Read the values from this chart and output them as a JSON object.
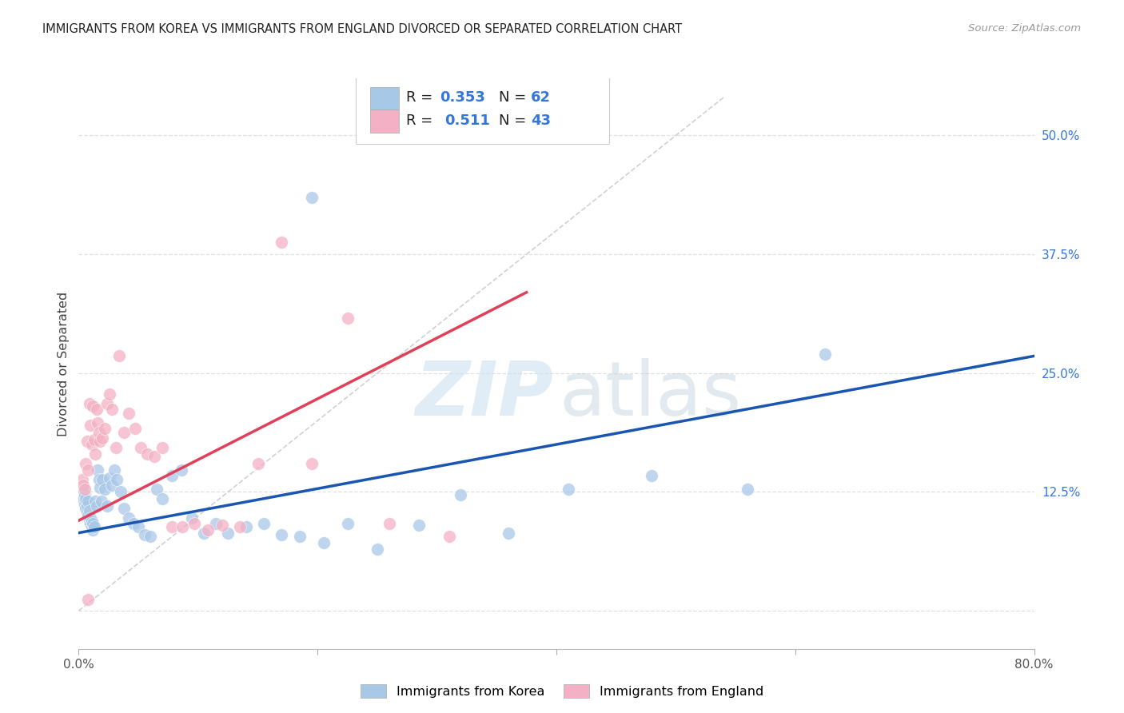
{
  "title": "IMMIGRANTS FROM KOREA VS IMMIGRANTS FROM ENGLAND DIVORCED OR SEPARATED CORRELATION CHART",
  "source": "Source: ZipAtlas.com",
  "ylabel": "Divorced or Separated",
  "x_min": 0.0,
  "x_max": 0.8,
  "y_min": -0.04,
  "y_max": 0.56,
  "x_ticks": [
    0.0,
    0.2,
    0.4,
    0.6,
    0.8
  ],
  "x_tick_labels": [
    "0.0%",
    "",
    "",
    "",
    "80.0%"
  ],
  "y_ticks": [
    0.0,
    0.125,
    0.25,
    0.375,
    0.5
  ],
  "y_tick_labels": [
    "",
    "12.5%",
    "25.0%",
    "37.5%",
    "50.0%"
  ],
  "korea_R": "0.353",
  "korea_N": "62",
  "england_R": "0.511",
  "england_N": "43",
  "korea_color": "#a8c8e8",
  "england_color": "#f4b0c4",
  "korea_line_color": "#1a56b0",
  "england_line_color": "#e0405a",
  "diagonal_color": "#cccccc",
  "background_color": "#ffffff",
  "grid_color": "#e0e0e0",
  "legend_text_color": "#3377dd",
  "korea_scatter_x": [
    0.003,
    0.004,
    0.005,
    0.005,
    0.006,
    0.006,
    0.007,
    0.007,
    0.008,
    0.008,
    0.009,
    0.009,
    0.01,
    0.01,
    0.011,
    0.011,
    0.012,
    0.012,
    0.013,
    0.014,
    0.015,
    0.016,
    0.017,
    0.018,
    0.019,
    0.02,
    0.022,
    0.024,
    0.026,
    0.028,
    0.03,
    0.032,
    0.035,
    0.038,
    0.042,
    0.046,
    0.05,
    0.055,
    0.06,
    0.065,
    0.07,
    0.078,
    0.086,
    0.095,
    0.105,
    0.115,
    0.125,
    0.14,
    0.155,
    0.17,
    0.185,
    0.205,
    0.225,
    0.25,
    0.285,
    0.32,
    0.36,
    0.41,
    0.48,
    0.56,
    0.195,
    0.625
  ],
  "korea_scatter_y": [
    0.128,
    0.118,
    0.122,
    0.112,
    0.108,
    0.118,
    0.104,
    0.11,
    0.1,
    0.115,
    0.095,
    0.105,
    0.092,
    0.098,
    0.088,
    0.094,
    0.085,
    0.092,
    0.088,
    0.115,
    0.11,
    0.148,
    0.138,
    0.13,
    0.115,
    0.138,
    0.128,
    0.11,
    0.14,
    0.132,
    0.148,
    0.138,
    0.125,
    0.108,
    0.098,
    0.092,
    0.088,
    0.08,
    0.078,
    0.128,
    0.118,
    0.142,
    0.148,
    0.098,
    0.082,
    0.092,
    0.082,
    0.088,
    0.092,
    0.08,
    0.078,
    0.072,
    0.092,
    0.065,
    0.09,
    0.122,
    0.082,
    0.128,
    0.142,
    0.128,
    0.435,
    0.27
  ],
  "england_scatter_x": [
    0.003,
    0.004,
    0.005,
    0.006,
    0.007,
    0.008,
    0.009,
    0.01,
    0.011,
    0.012,
    0.013,
    0.014,
    0.015,
    0.016,
    0.017,
    0.018,
    0.02,
    0.022,
    0.024,
    0.026,
    0.028,
    0.031,
    0.034,
    0.038,
    0.042,
    0.047,
    0.052,
    0.057,
    0.063,
    0.07,
    0.078,
    0.087,
    0.097,
    0.108,
    0.12,
    0.135,
    0.15,
    0.17,
    0.195,
    0.225,
    0.26,
    0.31,
    0.008
  ],
  "england_scatter_y": [
    0.138,
    0.132,
    0.128,
    0.155,
    0.178,
    0.148,
    0.218,
    0.195,
    0.175,
    0.215,
    0.18,
    0.165,
    0.212,
    0.198,
    0.188,
    0.178,
    0.182,
    0.192,
    0.218,
    0.228,
    0.212,
    0.172,
    0.268,
    0.188,
    0.208,
    0.192,
    0.172,
    0.165,
    0.162,
    0.172,
    0.088,
    0.088,
    0.092,
    0.085,
    0.09,
    0.088,
    0.155,
    0.388,
    0.155,
    0.308,
    0.092,
    0.078,
    0.012
  ],
  "korea_line_x": [
    0.0,
    0.8
  ],
  "korea_line_y": [
    0.082,
    0.268
  ],
  "england_line_x": [
    0.0,
    0.375
  ],
  "england_line_y": [
    0.095,
    0.335
  ],
  "diag_line_x": [
    0.0,
    0.54
  ],
  "diag_line_y": [
    0.0,
    0.54
  ]
}
